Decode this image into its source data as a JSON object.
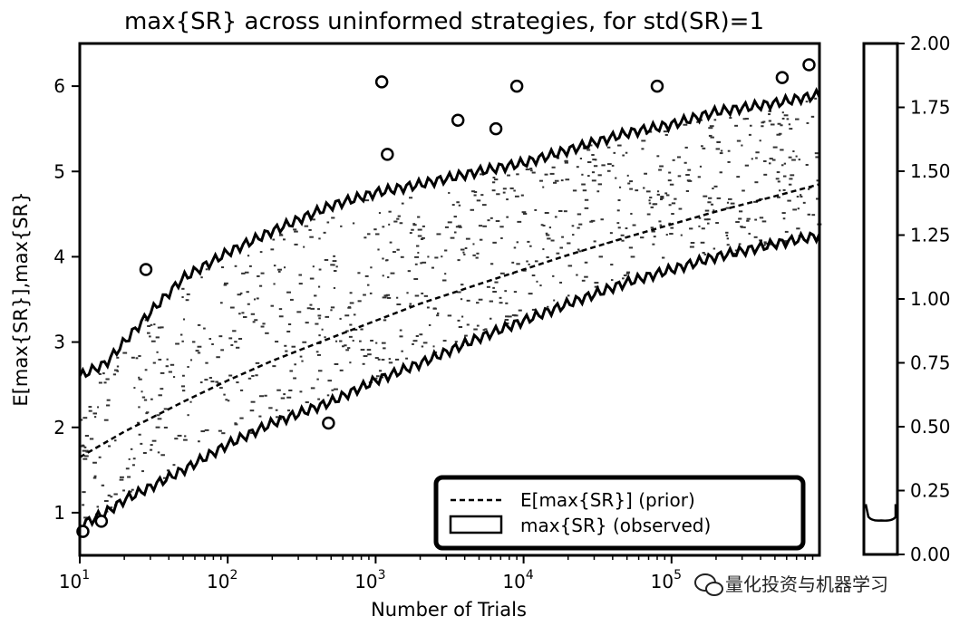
{
  "chart_data": {
    "type": "line",
    "title": "max{SR} across uninformed strategies, for std(SR)=1",
    "xlabel": "Number of Trials",
    "ylabel": "E[max{SR}],max{SR}",
    "xscale": "log",
    "xlim": [
      10,
      1000000
    ],
    "ylim": [
      0.5,
      6.5
    ],
    "x_ticks": [
      {
        "value": 10,
        "base": "10",
        "exp": "1"
      },
      {
        "value": 100,
        "base": "10",
        "exp": "2"
      },
      {
        "value": 1000,
        "base": "10",
        "exp": "3"
      },
      {
        "value": 10000,
        "base": "10",
        "exp": "4"
      },
      {
        "value": 100000,
        "base": "10",
        "exp": "5"
      }
    ],
    "y_ticks": [
      {
        "value": 1,
        "label": "1"
      },
      {
        "value": 2,
        "label": "2"
      },
      {
        "value": 3,
        "label": "3"
      },
      {
        "value": 4,
        "label": "4"
      },
      {
        "value": 5,
        "label": "5"
      },
      {
        "value": 6,
        "label": "6"
      }
    ],
    "series": [
      {
        "name": "E[max{SR}] (prior)",
        "style": "dashed",
        "x": [
          10,
          20,
          50,
          100,
          200,
          500,
          1000,
          2000,
          5000,
          10000,
          20000,
          50000,
          100000,
          200000,
          500000,
          1000000
        ],
        "y": [
          1.65,
          1.95,
          2.3,
          2.55,
          2.78,
          3.05,
          3.25,
          3.45,
          3.68,
          3.85,
          4.02,
          4.23,
          4.38,
          4.53,
          4.71,
          4.85
        ]
      },
      {
        "name": "max{SR} (observed) upper envelope",
        "style": "contour",
        "x": [
          10,
          15,
          20,
          30,
          50,
          100,
          200,
          500,
          1000,
          2000,
          5000,
          10000,
          20000,
          50000,
          100000,
          200000,
          500000,
          1000000
        ],
        "y": [
          2.6,
          2.75,
          3.0,
          3.35,
          3.75,
          4.05,
          4.3,
          4.6,
          4.75,
          4.85,
          5.0,
          5.1,
          5.25,
          5.45,
          5.55,
          5.7,
          5.8,
          5.9
        ]
      },
      {
        "name": "max{SR} (observed) lower envelope",
        "style": "contour",
        "x": [
          10,
          15,
          20,
          30,
          50,
          100,
          200,
          500,
          1000,
          2000,
          5000,
          10000,
          20000,
          50000,
          100000,
          200000,
          500000,
          1000000
        ],
        "y": [
          0.85,
          1.0,
          1.15,
          1.3,
          1.5,
          1.8,
          2.05,
          2.3,
          2.55,
          2.75,
          3.05,
          3.25,
          3.45,
          3.7,
          3.85,
          4.0,
          4.15,
          4.25
        ]
      }
    ],
    "outliers": [
      {
        "x": 1100,
        "y": 6.05
      },
      {
        "x": 3600,
        "y": 5.6
      },
      {
        "x": 6500,
        "y": 5.5
      },
      {
        "x": 9000,
        "y": 6.0
      },
      {
        "x": 80000,
        "y": 6.0
      },
      {
        "x": 560000,
        "y": 6.1
      },
      {
        "x": 850000,
        "y": 6.25
      },
      {
        "x": 28,
        "y": 3.85
      },
      {
        "x": 480,
        "y": 2.05
      },
      {
        "x": 14,
        "y": 0.9
      },
      {
        "x": 10.5,
        "y": 0.78
      },
      {
        "x": 1200,
        "y": 5.2
      }
    ],
    "legend": {
      "placement": "lower-right",
      "entries": [
        "E[max{SR}] (prior)",
        "max{SR} (observed)"
      ]
    },
    "colorbar": {
      "range": [
        0.0,
        2.0
      ],
      "ticks": [
        "2.00",
        "1.75",
        "1.50",
        "1.25",
        "1.00",
        "0.75",
        "0.50",
        "0.25",
        "0.00"
      ],
      "tick_values": [
        2.0,
        1.75,
        1.5,
        1.25,
        1.0,
        0.75,
        0.5,
        0.25,
        0.0
      ],
      "contour_level": 0.14
    }
  },
  "watermark": {
    "text": "量化投资与机器学习",
    "icon": "wechat-icon"
  }
}
